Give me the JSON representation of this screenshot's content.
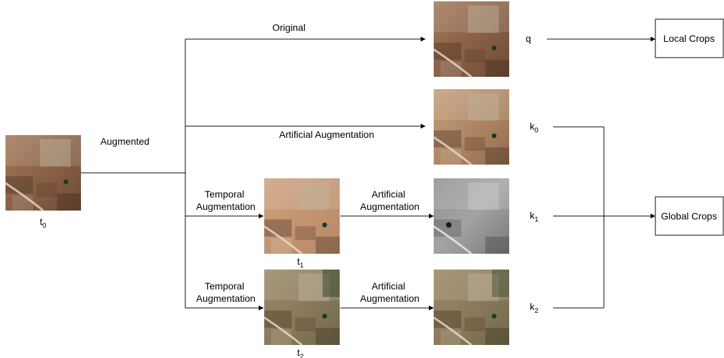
{
  "labels": {
    "original": "Original",
    "augmented": "Augmented",
    "artificial_augmentation": "Artificial Augmentation",
    "temporal_augmentation_1": [
      "Temporal",
      "Augmentation"
    ],
    "temporal_augmentation_2": [
      "Temporal",
      "Augmentation"
    ],
    "artificial_augmentation_1": [
      "Artificial",
      "Augmentation"
    ],
    "artificial_augmentation_2": [
      "Artificial",
      "Augmentation"
    ]
  },
  "images": {
    "t0": {
      "base": "t",
      "sub": "0"
    },
    "t1": {
      "base": "t",
      "sub": "1"
    },
    "t2": {
      "base": "t",
      "sub": "2"
    }
  },
  "outputs": {
    "q": "q",
    "k0": {
      "base": "k",
      "sub": "0"
    },
    "k1": {
      "base": "k",
      "sub": "1"
    },
    "k2": {
      "base": "k",
      "sub": "2"
    }
  },
  "boxes": {
    "local_crops": "Local Crops",
    "global_crops": "Global Crops"
  }
}
